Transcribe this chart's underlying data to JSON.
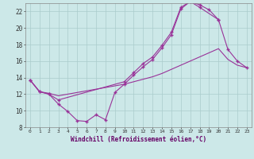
{
  "background_color": "#cce8e8",
  "line_color": "#993399",
  "grid_color": "#aacccc",
  "xlabel": "Windchill (Refroidissement éolien,°C)",
  "xlim": [
    -0.5,
    23.5
  ],
  "ylim": [
    8,
    23
  ],
  "yticks": [
    8,
    10,
    12,
    14,
    16,
    18,
    20,
    22
  ],
  "xticks": [
    0,
    1,
    2,
    3,
    4,
    5,
    6,
    7,
    8,
    9,
    10,
    11,
    12,
    13,
    14,
    15,
    16,
    17,
    18,
    19,
    20,
    21,
    22,
    23
  ],
  "line1_x": [
    0,
    1,
    2,
    3,
    4,
    5,
    6,
    7,
    8,
    9,
    10,
    11,
    12,
    13,
    14,
    15,
    16,
    17,
    18,
    19,
    20
  ],
  "line1_y": [
    13.7,
    12.3,
    12.0,
    10.8,
    9.9,
    8.8,
    8.7,
    9.5,
    8.9,
    12.2,
    13.2,
    14.3,
    15.3,
    16.2,
    17.6,
    19.2,
    22.3,
    23.2,
    22.8,
    22.2,
    21.0
  ],
  "line2_x": [
    0,
    1,
    2,
    3,
    10,
    11,
    12,
    13,
    14,
    15,
    16,
    17,
    18,
    20,
    21,
    22,
    23
  ],
  "line2_y": [
    13.7,
    12.3,
    12.0,
    11.3,
    13.5,
    14.6,
    15.7,
    16.5,
    17.9,
    19.5,
    22.5,
    23.2,
    22.5,
    21.0,
    17.4,
    16.0,
    15.2
  ],
  "line3_x": [
    0,
    1,
    2,
    3,
    4,
    5,
    6,
    7,
    8,
    9,
    10,
    11,
    12,
    13,
    14,
    15,
    16,
    17,
    18,
    19,
    20,
    21,
    22,
    23
  ],
  "line3_y": [
    13.7,
    12.3,
    12.1,
    11.8,
    12.0,
    12.2,
    12.4,
    12.6,
    12.8,
    13.0,
    13.2,
    13.5,
    13.8,
    14.1,
    14.5,
    15.0,
    15.5,
    16.0,
    16.5,
    17.0,
    17.5,
    16.2,
    15.5,
    15.2
  ]
}
